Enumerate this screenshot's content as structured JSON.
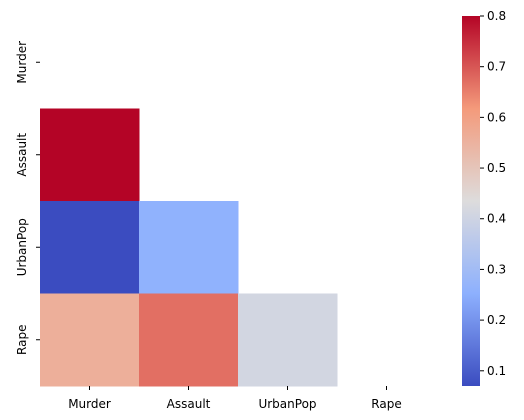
{
  "chart_data": {
    "type": "heatmap",
    "title": "",
    "xlabel": "",
    "ylabel": "",
    "x_categories": [
      "Murder",
      "Assault",
      "UrbanPop",
      "Rape"
    ],
    "y_categories": [
      "Murder",
      "Assault",
      "UrbanPop",
      "Rape"
    ],
    "mask": "upper-triangle-including-diagonal",
    "cells": [
      {
        "row": "Assault",
        "col": "Murder",
        "value": 0.8
      },
      {
        "row": "UrbanPop",
        "col": "Murder",
        "value": 0.07
      },
      {
        "row": "UrbanPop",
        "col": "Assault",
        "value": 0.26
      },
      {
        "row": "Rape",
        "col": "Murder",
        "value": 0.56
      },
      {
        "row": "Rape",
        "col": "Assault",
        "value": 0.67
      },
      {
        "row": "Rape",
        "col": "UrbanPop",
        "value": 0.41
      }
    ],
    "colormap": "coolwarm",
    "color_range": [
      0.07,
      0.8
    ],
    "colorbar": {
      "position": "right",
      "ticks": [
        0.1,
        0.2,
        0.3,
        0.4,
        0.5,
        0.6,
        0.7,
        0.8
      ],
      "tick_labels": [
        "0.1",
        "0.2",
        "0.3",
        "0.4",
        "0.5",
        "0.6",
        "0.7",
        "0.8"
      ]
    },
    "grid": false
  }
}
